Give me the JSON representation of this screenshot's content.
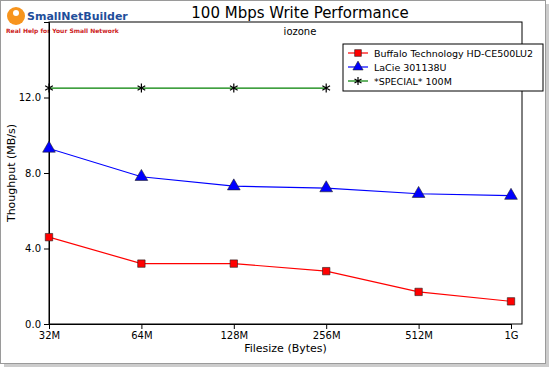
{
  "chart_data": {
    "type": "line",
    "title": "100 Mbps Write Performance",
    "subtitle": "iozone",
    "annotations": [
      "SmallNetBuilder",
      "Real Help for Your Small Network"
    ],
    "x_label": "Filesize (Bytes)",
    "y_label": "Thoughput (MB/s)",
    "categories": [
      "32M",
      "64M",
      "128M",
      "256M",
      "512M",
      "1G"
    ],
    "series": [
      {
        "name": "Buffalo Technology HD-CE500LU2",
        "color": "#ff0000",
        "marker": "square",
        "line_style": "solid",
        "values": [
          4.6,
          3.2,
          3.2,
          2.8,
          1.7,
          1.2
        ]
      },
      {
        "name": "LaCie 301138U",
        "color": "#0000ff",
        "marker": "triangle",
        "line_style": "solid",
        "values": [
          9.3,
          7.8,
          7.3,
          7.2,
          6.9,
          6.8
        ]
      },
      {
        "name": "*SPECIAL* 100M",
        "color": "#008000",
        "marker": "asterisk",
        "line_style": "solid",
        "values": [
          12.5,
          12.5,
          12.5,
          12.5,
          null,
          null
        ]
      }
    ],
    "ylim": [
      0,
      16
    ],
    "yticks": [
      {
        "value": 0,
        "label": "0.0"
      },
      {
        "value": 4,
        "label": "4.0"
      },
      {
        "value": 8,
        "label": "8.0"
      },
      {
        "value": 12,
        "label": "12.0"
      }
    ],
    "grid": false,
    "legend": "upper right"
  }
}
